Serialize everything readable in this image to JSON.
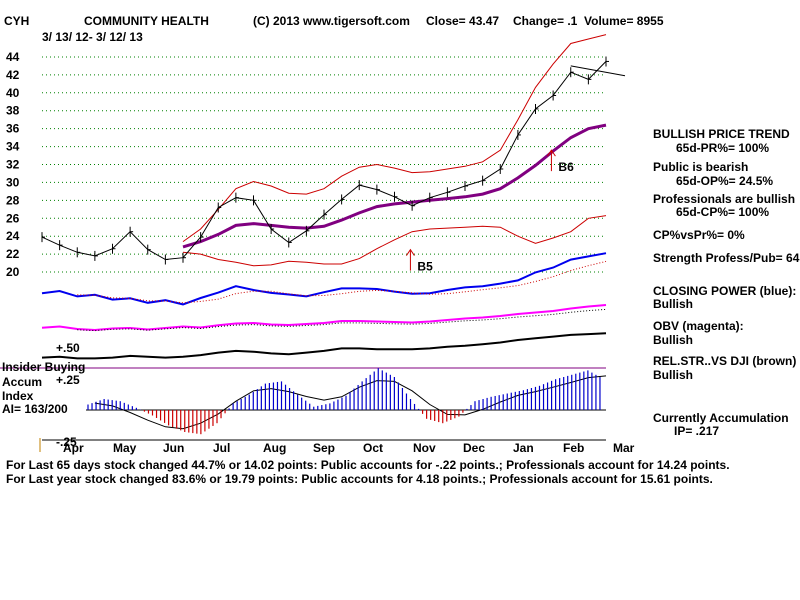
{
  "header": {
    "ticker": "CYH",
    "company": "COMMUNITY HEALTH",
    "copyright": "(C) 2013 www.tigersoft.com",
    "close": "Close=  43.47",
    "change": "Change= .1",
    "volume": "Volume= 8955",
    "date_range": "3/ 13/ 12-  3/ 12/ 13"
  },
  "chart_data": {
    "type": "line",
    "title": "COMMUNITY HEALTH",
    "y_ticks": [
      "44",
      "42",
      "40",
      "38",
      "36",
      "34",
      "32",
      "30",
      "28",
      "26",
      "24",
      "22",
      "20"
    ],
    "ylim": [
      19,
      45
    ],
    "x_ticks": [
      "Apr",
      "May",
      "Jun",
      "Jul",
      "Aug",
      "Sep",
      "Oct",
      "Nov",
      "Dec",
      "Jan",
      "Feb",
      "Mar"
    ],
    "series": [
      {
        "name": "Close",
        "color": "#000000",
        "values": [
          23.9,
          23.0,
          22.2,
          21.8,
          22.6,
          24.5,
          22.5,
          21.4,
          21.6,
          23.9,
          27.2,
          28.3,
          28.0,
          24.8,
          23.3,
          24.6,
          26.4,
          28.1,
          29.7,
          29.2,
          28.4,
          27.4,
          28.3,
          28.9,
          29.6,
          30.2,
          31.5,
          35.3,
          38.2,
          39.7,
          42.3,
          41.5,
          43.5
        ]
      },
      {
        "name": "Moving average (purple)",
        "color": "#800080",
        "values": [
          null,
          null,
          null,
          null,
          null,
          null,
          null,
          null,
          22.8,
          23.4,
          24.2,
          25.2,
          25.4,
          25.2,
          25.0,
          24.9,
          25.1,
          25.8,
          26.6,
          27.3,
          27.6,
          27.8,
          28.0,
          28.2,
          28.4,
          28.7,
          29.3,
          30.5,
          31.9,
          33.5,
          35.0,
          36.0,
          36.4
        ]
      },
      {
        "name": "Upper band",
        "color": "#cc0000",
        "values": [
          null,
          null,
          null,
          null,
          null,
          null,
          null,
          null,
          23.4,
          24.8,
          27.0,
          29.3,
          30.1,
          29.6,
          28.8,
          28.7,
          29.3,
          30.7,
          31.7,
          32.0,
          31.6,
          31.1,
          31.2,
          31.5,
          31.8,
          32.3,
          33.6,
          37.0,
          40.6,
          43.2,
          45.5,
          46.0,
          46.5
        ]
      },
      {
        "name": "Lower band",
        "color": "#cc0000",
        "values": [
          null,
          null,
          null,
          null,
          null,
          null,
          null,
          null,
          22.2,
          22.0,
          21.4,
          21.1,
          20.7,
          20.8,
          21.2,
          21.1,
          20.9,
          20.9,
          21.5,
          22.6,
          23.6,
          24.5,
          24.8,
          24.9,
          25.0,
          25.1,
          25.0,
          24.0,
          23.2,
          23.8,
          24.5,
          26.0,
          26.3
        ]
      },
      {
        "name": "Closing Power (blue)",
        "color": "#0000ee",
        "values": [
          0.4,
          0.47,
          0.3,
          0.35,
          0.2,
          0.24,
          0.1,
          0.18,
          0.05,
          0.25,
          0.42,
          0.62,
          0.5,
          0.41,
          0.36,
          0.3,
          0.43,
          0.55,
          0.55,
          0.53,
          0.45,
          0.38,
          0.4,
          0.5,
          0.58,
          0.62,
          0.7,
          0.8,
          1.05,
          1.2,
          1.45,
          1.55,
          1.65
        ]
      },
      {
        "name": "OBV (magenta)",
        "color": "#ff00ff",
        "values": [
          0.25,
          0.3,
          0.2,
          0.16,
          0.22,
          0.24,
          0.18,
          0.24,
          0.3,
          0.26,
          0.35,
          0.42,
          0.44,
          0.38,
          0.36,
          0.4,
          0.44,
          0.52,
          0.52,
          0.5,
          0.48,
          0.46,
          0.5,
          0.56,
          0.62,
          0.66,
          0.72,
          0.8,
          0.86,
          0.92,
          1.02,
          1.1,
          1.16
        ]
      },
      {
        "name": "Rel. Str. vs DJI",
        "color": "#000000",
        "values": [
          0.2,
          0.22,
          0.18,
          0.18,
          0.2,
          0.24,
          0.22,
          0.2,
          0.22,
          0.26,
          0.32,
          0.36,
          0.34,
          0.3,
          0.28,
          0.32,
          0.36,
          0.42,
          0.42,
          0.4,
          0.4,
          0.4,
          0.42,
          0.46,
          0.48,
          0.52,
          0.56,
          0.62,
          0.66,
          0.7,
          0.74,
          0.76,
          0.78
        ]
      },
      {
        "name": "Accumulation Index",
        "color": "#0000cc",
        "values": [
          0.05,
          0.1,
          0.08,
          0.02,
          -0.05,
          -0.14,
          -0.2,
          -0.22,
          -0.12,
          0.06,
          0.14,
          0.24,
          0.26,
          0.14,
          0.03,
          0.06,
          0.13,
          0.26,
          0.38,
          0.3,
          0.1,
          -0.08,
          -0.12,
          -0.06,
          0.08,
          0.12,
          0.15,
          0.18,
          0.22,
          0.28,
          0.32,
          0.36,
          0.28
        ]
      }
    ],
    "annotations": [
      {
        "label": "B5",
        "date_index": 21.3,
        "price": 21.5
      },
      {
        "label": "B6",
        "date_index": 29.3,
        "price": 32.6
      }
    ],
    "lower_labels": {
      "plus50": "+.50",
      "plus25": "+.25",
      "minus25": "-.25",
      "insider": "Insider Buying",
      "accum1": "Accum",
      "accum2": "Index",
      "ai": "AI= 163/200"
    }
  },
  "side_panel": {
    "trend_title": "BULLISH PRICE TREND",
    "pr": "65d-PR%= 100%",
    "public": "Public is bearish",
    "op": "65d-OP%= 24.5%",
    "pros": "Professionals are bullish",
    "cp": "65d-CP%= 100%",
    "cpvspr": "CP%vsPr%=  0%",
    "strength": "Strength Profess/Pub= 64",
    "closing_power": "CLOSING POWER (blue):",
    "closing_power_val": "Bullish",
    "obv": "OBV (magenta):",
    "obv_val": "Bullish",
    "relstr": "REL.STR..VS DJI (brown)",
    "relstr_val": "Bullish",
    "currently": "Currently Accumulation",
    "ip": "IP=  .217"
  },
  "footer": {
    "line1": "For Last 65 days stock changed  44.7% or  14.02 points:  Public accounts for -.22 points.;  Professionals account for  14.24 points.",
    "line2": "For Last year stock changed  83.6% or  19.79 points:  Public accounts for  4.18 points.;  Professionals account for  15.61 points."
  },
  "colors": {
    "close": "#000000",
    "ma": "#800080",
    "band": "#cc0000",
    "cp": "#0000ee",
    "obv": "#ff00ff",
    "grid": "#008000",
    "accum": "#0000cc",
    "distrib": "#cc0000"
  }
}
